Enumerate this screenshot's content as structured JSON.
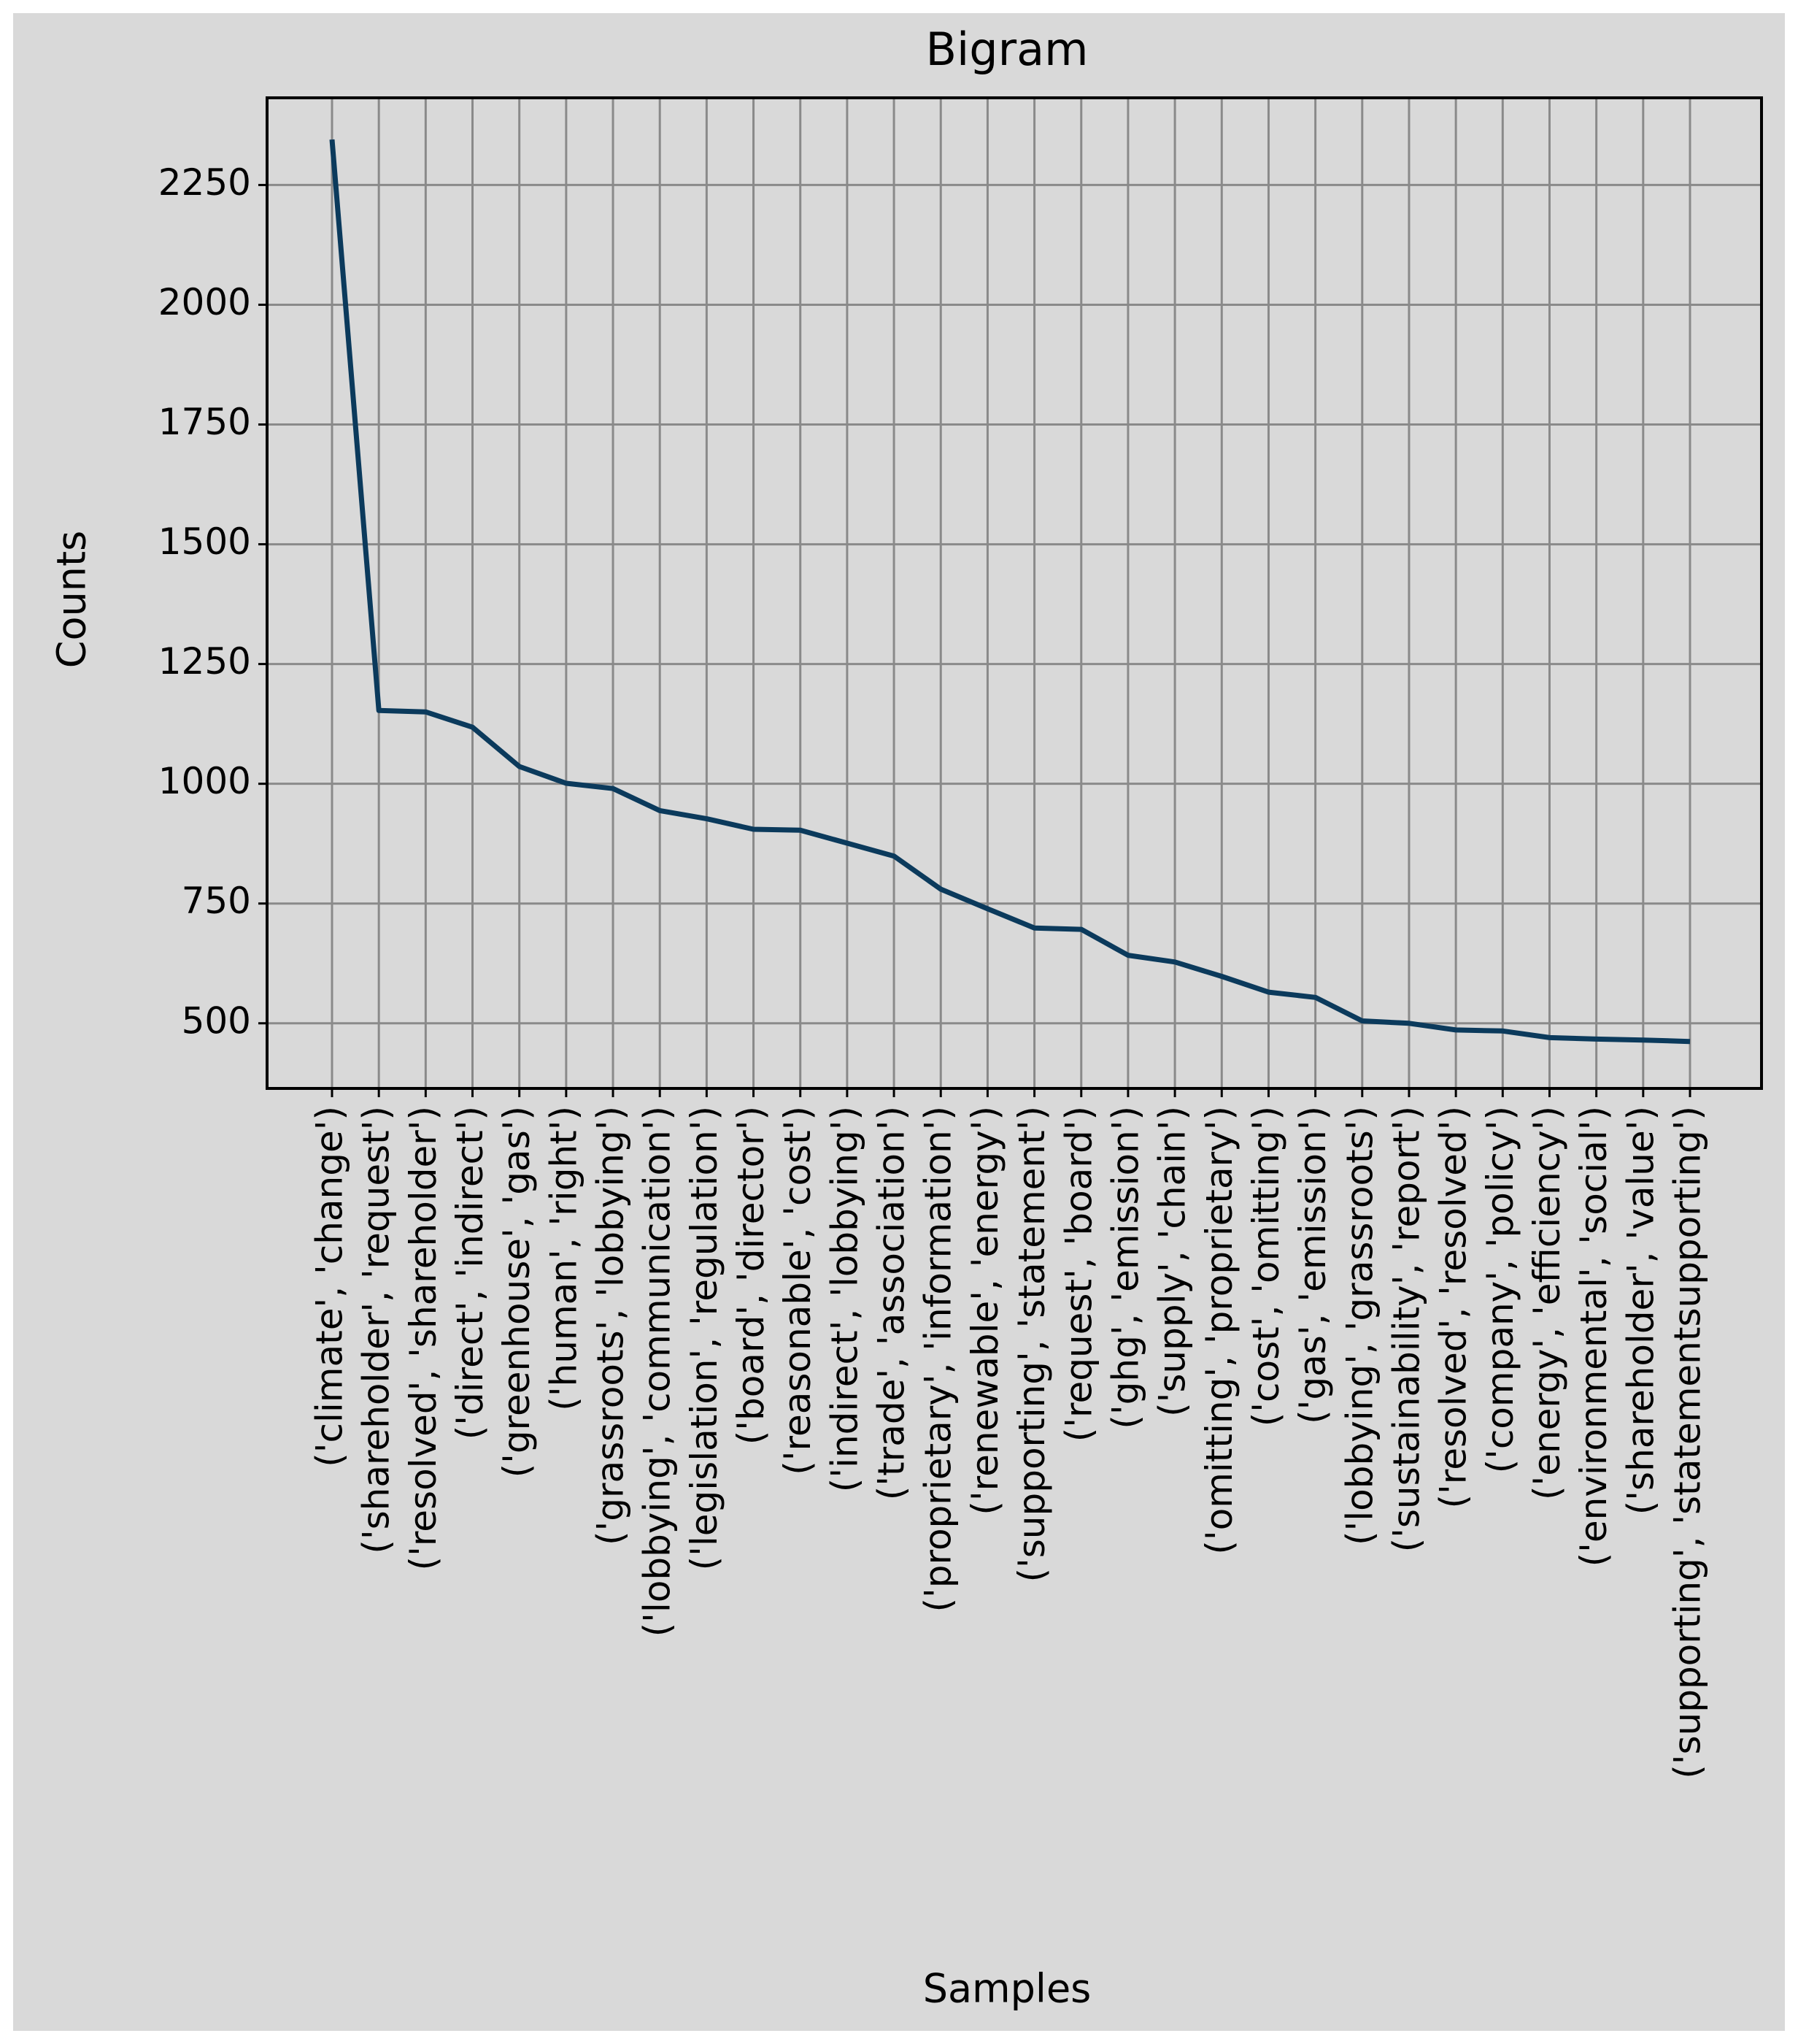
{
  "chart_data": {
    "type": "line",
    "title": "Bigram",
    "xlabel": "Samples",
    "ylabel": "Counts",
    "categories": [
      "('climate', 'change')",
      "('shareholder', 'request')",
      "('resolved', 'shareholder')",
      "('direct', 'indirect')",
      "('greenhouse', 'gas')",
      "('human', 'right')",
      "('grassroots', 'lobbying')",
      "('lobbying', 'communication')",
      "('legislation', 'regulation')",
      "('board', 'director')",
      "('reasonable', 'cost')",
      "('indirect', 'lobbying')",
      "('trade', 'association')",
      "('proprietary', 'information')",
      "('renewable', 'energy')",
      "('supporting', 'statement')",
      "('request', 'board')",
      "('ghg', 'emission')",
      "('supply', 'chain')",
      "('omitting', 'proprietary')",
      "('cost', 'omitting')",
      "('gas', 'emission')",
      "('lobbying', 'grassroots')",
      "('sustainability', 'report')",
      "('resolved', 'resolved')",
      "('company', 'policy')",
      "('energy', 'efficiency')",
      "('environmental', 'social')",
      "('shareholder', 'value')",
      "('supporting', 'statementsupporting')"
    ],
    "series": [
      {
        "name": "Counts",
        "color": "#0b3a5c",
        "values": [
          2345,
          1153,
          1150,
          1118,
          1036,
          1001,
          990,
          944,
          927,
          905,
          903,
          876,
          849,
          780,
          739,
          699,
          696,
          642,
          628,
          598,
          565,
          554,
          505,
          500,
          486,
          484,
          470,
          467,
          465,
          462
        ]
      }
    ],
    "ylim": [
      364,
      2432
    ],
    "yticks": [
      500,
      750,
      1000,
      1250,
      1500,
      1750,
      2000,
      2250
    ],
    "grid": true
  }
}
